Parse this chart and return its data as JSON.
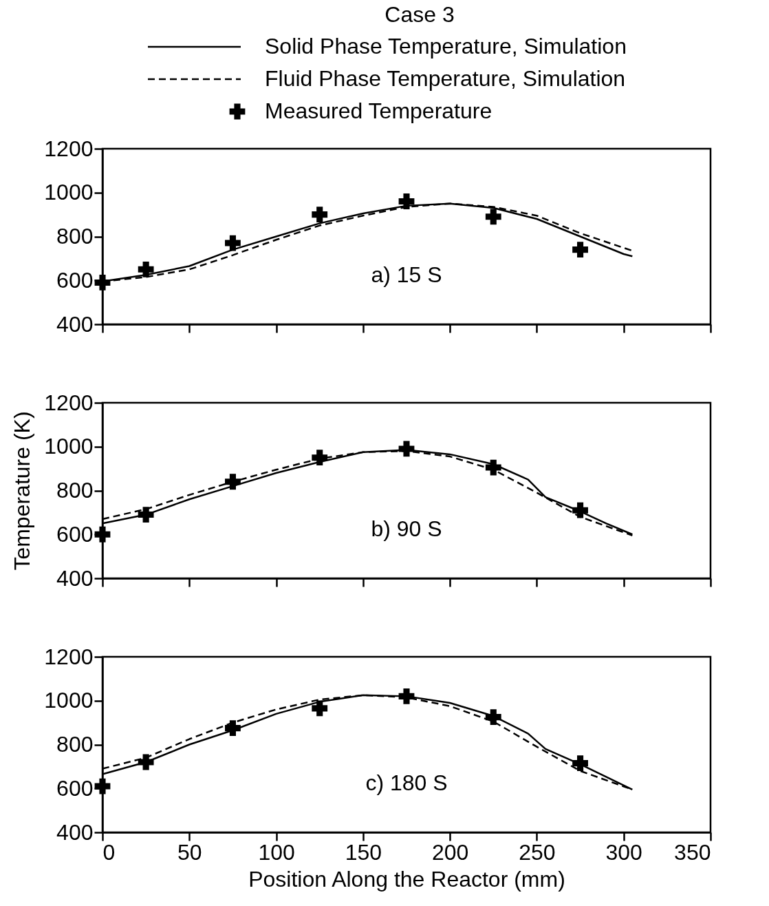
{
  "chart_data": [
    {
      "type": "line",
      "legend_title": "Case 3",
      "legend": "top",
      "tick_labels": "y",
      "annotations": [
        "a) 15 S"
      ],
      "xlim": [
        0,
        350
      ],
      "xticks": [
        0,
        50,
        100,
        150,
        200,
        250,
        300,
        350
      ],
      "ylim": [
        400,
        1200
      ],
      "yticks": [
        400,
        600,
        800,
        1000,
        1200
      ],
      "grid": false,
      "series": [
        {
          "name": "Solid Phase Temperature, Simulation",
          "type": "line",
          "line_style": "solid",
          "color": "#000000",
          "x": [
            0,
            25,
            50,
            75,
            100,
            125,
            150,
            175,
            200,
            225,
            250,
            275,
            300,
            305
          ],
          "values": [
            595,
            625,
            665,
            740,
            800,
            860,
            905,
            940,
            950,
            930,
            880,
            800,
            720,
            710
          ]
        },
        {
          "name": "Fluid Phase Temperature, Simulation",
          "type": "line",
          "line_style": "dashed",
          "color": "#000000",
          "x": [
            0,
            25,
            50,
            75,
            100,
            125,
            150,
            175,
            200,
            225,
            250,
            275,
            305
          ],
          "values": [
            595,
            615,
            650,
            715,
            785,
            850,
            895,
            935,
            950,
            935,
            895,
            815,
            735
          ]
        },
        {
          "name": "Measured Temperature",
          "type": "scatter",
          "marker": "cross",
          "color": "#000000",
          "x": [
            0,
            25,
            75,
            125,
            175,
            225,
            275
          ],
          "values": [
            590,
            650,
            770,
            900,
            960,
            890,
            740
          ]
        }
      ]
    },
    {
      "type": "line",
      "ylabel": "Temperature (K)",
      "tick_labels": "y",
      "annotations": [
        "b) 90 S"
      ],
      "xlim": [
        0,
        350
      ],
      "xticks": [
        0,
        50,
        100,
        150,
        200,
        250,
        300,
        350
      ],
      "ylim": [
        400,
        1200
      ],
      "yticks": [
        400,
        600,
        800,
        1000,
        1200
      ],
      "grid": false,
      "series": [
        {
          "type": "line",
          "line_style": "solid",
          "color": "#000000",
          "x": [
            0,
            25,
            50,
            75,
            100,
            125,
            150,
            175,
            200,
            225,
            245,
            255,
            275,
            290,
            305
          ],
          "values": [
            650,
            690,
            760,
            820,
            880,
            930,
            975,
            985,
            965,
            920,
            850,
            770,
            705,
            650,
            600
          ]
        },
        {
          "type": "line",
          "line_style": "dashed",
          "color": "#000000",
          "x": [
            0,
            25,
            50,
            75,
            100,
            125,
            150,
            175,
            200,
            225,
            250,
            275,
            305
          ],
          "values": [
            670,
            715,
            780,
            840,
            895,
            945,
            975,
            980,
            955,
            895,
            790,
            680,
            595
          ]
        },
        {
          "type": "scatter",
          "marker": "cross",
          "color": "#000000",
          "x": [
            0,
            25,
            75,
            125,
            175,
            225,
            275
          ],
          "values": [
            600,
            690,
            840,
            950,
            990,
            905,
            710
          ]
        }
      ]
    },
    {
      "type": "line",
      "xlabel": "Position Along the Reactor (mm)",
      "annotations": [
        "c) 180 S"
      ],
      "xlim": [
        0,
        350
      ],
      "xticks": [
        0,
        50,
        100,
        150,
        200,
        250,
        300,
        350
      ],
      "ylim": [
        400,
        1200
      ],
      "yticks": [
        400,
        600,
        800,
        1000,
        1200
      ],
      "grid": false,
      "series": [
        {
          "type": "line",
          "line_style": "solid",
          "color": "#000000",
          "x": [
            0,
            25,
            50,
            75,
            100,
            125,
            150,
            175,
            200,
            225,
            245,
            255,
            275,
            305
          ],
          "values": [
            665,
            720,
            800,
            865,
            940,
            995,
            1025,
            1020,
            990,
            930,
            850,
            780,
            710,
            595
          ]
        },
        {
          "type": "line",
          "line_style": "dashed",
          "color": "#000000",
          "x": [
            0,
            25,
            50,
            75,
            100,
            125,
            150,
            175,
            200,
            225,
            250,
            275,
            305
          ],
          "values": [
            690,
            740,
            825,
            900,
            960,
            1005,
            1025,
            1015,
            975,
            905,
            790,
            680,
            595
          ]
        },
        {
          "type": "scatter",
          "marker": "cross",
          "color": "#000000",
          "x": [
            0,
            25,
            75,
            125,
            175,
            225,
            275
          ],
          "values": [
            610,
            720,
            875,
            965,
            1020,
            925,
            715
          ]
        }
      ]
    }
  ]
}
